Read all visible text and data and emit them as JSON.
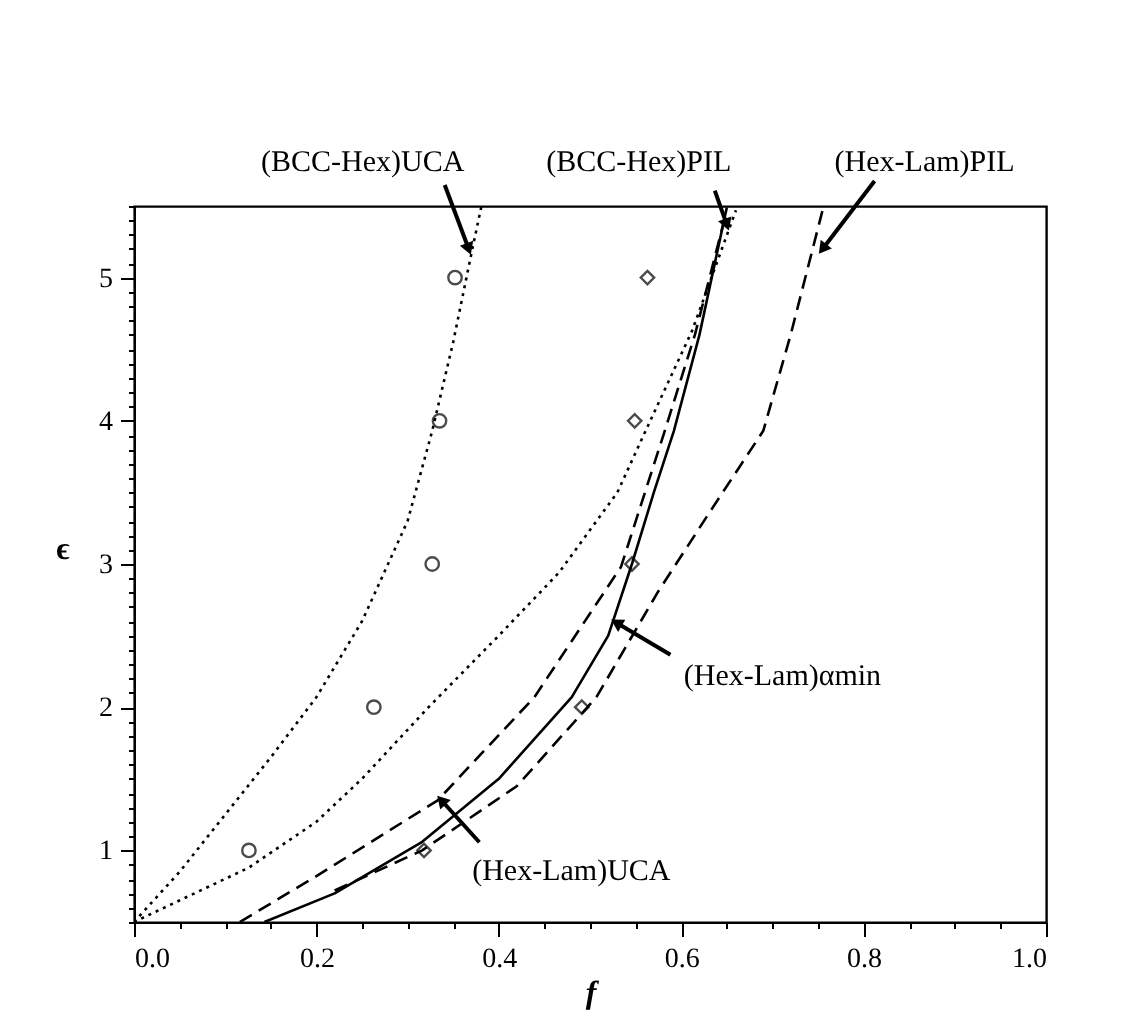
{
  "chart_data": {
    "type": "line",
    "xlabel": "f",
    "ylabel": "ϵ",
    "xlim": [
      0,
      1
    ],
    "ylim": [
      0.5,
      5.5
    ],
    "xticks": [
      {
        "value": 0,
        "label": "0.0"
      },
      {
        "value": 0.05,
        "label": null
      },
      {
        "value": 0.1,
        "label": null
      },
      {
        "value": 0.15,
        "label": null
      },
      0.2,
      {
        "value": 0.25,
        "label": null
      },
      {
        "value": 0.3,
        "label": null
      },
      {
        "value": 0.35,
        "label": null
      },
      0.4,
      {
        "value": 0.45,
        "label": null
      },
      {
        "value": 0.5,
        "label": null
      },
      {
        "value": 0.55,
        "label": null
      },
      0.6,
      {
        "value": 0.65,
        "label": null
      },
      {
        "value": 0.7,
        "label": null
      },
      {
        "value": 0.75,
        "label": null
      },
      0.8,
      {
        "value": 0.85,
        "label": null
      },
      {
        "value": 0.9,
        "label": null
      },
      {
        "value": 0.95,
        "label": null
      },
      {
        "value": 1,
        "label": "1.0"
      }
    ],
    "yticks": [
      {
        "value": 0.5,
        "label": null
      },
      {
        "value": 0.6,
        "label": null
      },
      {
        "value": 0.7,
        "label": null
      },
      {
        "value": 0.8,
        "label": null
      },
      {
        "value": 0.9,
        "label": null
      },
      1,
      {
        "value": 1.1,
        "label": null
      },
      {
        "value": 1.2,
        "label": null
      },
      {
        "value": 1.3,
        "label": null
      },
      {
        "value": 1.4,
        "label": null
      },
      {
        "value": 1.5,
        "label": null
      },
      {
        "value": 1.6,
        "label": null
      },
      {
        "value": 1.7,
        "label": null
      },
      {
        "value": 1.8,
        "label": null
      },
      {
        "value": 1.9,
        "label": null
      },
      2,
      {
        "value": 2.1,
        "label": null
      },
      {
        "value": 2.2,
        "label": null
      },
      {
        "value": 2.3,
        "label": null
      },
      {
        "value": 2.4,
        "label": null
      },
      {
        "value": 2.5,
        "label": null
      },
      {
        "value": 2.6,
        "label": null
      },
      {
        "value": 2.7,
        "label": null
      },
      {
        "value": 2.8,
        "label": null
      },
      {
        "value": 2.9,
        "label": null
      },
      3,
      {
        "value": 3.1,
        "label": null
      },
      {
        "value": 3.2,
        "label": null
      },
      {
        "value": 3.3,
        "label": null
      },
      {
        "value": 3.4,
        "label": null
      },
      {
        "value": 3.5,
        "label": null
      },
      {
        "value": 3.6,
        "label": null
      },
      {
        "value": 3.7,
        "label": null
      },
      {
        "value": 3.8,
        "label": null
      },
      {
        "value": 3.9,
        "label": null
      },
      4,
      {
        "value": 4.1,
        "label": null
      },
      {
        "value": 4.2,
        "label": null
      },
      {
        "value": 4.3,
        "label": null
      },
      {
        "value": 4.4,
        "label": null
      },
      {
        "value": 4.5,
        "label": null
      },
      {
        "value": 4.6,
        "label": null
      },
      {
        "value": 4.7,
        "label": null
      },
      {
        "value": 4.8,
        "label": null
      },
      {
        "value": 4.9,
        "label": null
      },
      5,
      {
        "value": 5.1,
        "label": null
      },
      {
        "value": 5.2,
        "label": null
      },
      {
        "value": 5.3,
        "label": null
      },
      {
        "value": 5.4,
        "label": null
      },
      {
        "value": 5.5,
        "label": null
      }
    ],
    "grid": false,
    "series": [
      {
        "line_style": "dotted",
        "marker": "none",
        "color": "#000000",
        "x": [
          0,
          0.05,
          0.1,
          0.15,
          0.2,
          0.25,
          0.3,
          0.327,
          0.35,
          0.371,
          0.381
        ],
        "values": [
          0.5,
          0.85,
          1.25,
          1.65,
          2.07,
          2.6,
          3.3,
          3.93,
          4.55,
          5.2,
          5.5
        ]
      },
      {
        "line_style": "dotted",
        "marker": "none",
        "color": "#000000",
        "x": [
          0,
          0.126,
          0.2,
          0.25,
          0.323,
          0.4,
          0.466,
          0.53,
          0.561,
          0.612,
          0.66
        ],
        "values": [
          0.5,
          0.88,
          1.2,
          1.5,
          2.0,
          2.5,
          2.94,
          3.5,
          3.93,
          4.63,
          5.47
        ]
      },
      {
        "line_style": "solid",
        "marker": "none",
        "color": "#000000",
        "x": [
          0.143,
          0.22,
          0.316,
          0.4,
          0.48,
          0.52,
          0.546,
          0.57,
          0.592,
          0.62,
          0.65
        ],
        "values": [
          0.5,
          0.7,
          1.06,
          1.5,
          2.07,
          2.5,
          3.0,
          3.5,
          3.93,
          4.6,
          5.49
        ]
      },
      {
        "line_style": "dashed",
        "marker": "none",
        "color": "#000000",
        "x": [
          0.116,
          0.2,
          0.333,
          0.439,
          0.534,
          0.582,
          0.615,
          0.65
        ],
        "values": [
          0.5,
          0.82,
          1.35,
          2.07,
          2.98,
          3.93,
          4.6,
          5.47
        ]
      },
      {
        "line_style": "dashed",
        "marker": "none",
        "color": "#000000",
        "x": [
          0.22,
          0.316,
          0.42,
          0.507,
          0.575,
          0.63,
          0.69,
          0.72,
          0.755
        ],
        "values": [
          0.72,
          1.0,
          1.45,
          2.07,
          2.81,
          3.35,
          3.93,
          4.6,
          5.47
        ]
      },
      {
        "type": "scatter",
        "marker": "circle",
        "color": "#000000",
        "x": [
          0.126,
          0.263,
          0.327,
          0.335,
          0.352
        ],
        "values": [
          1,
          2,
          3,
          4,
          5
        ]
      },
      {
        "type": "scatter",
        "marker": "diamond",
        "color": "#000000",
        "x": [
          0.318,
          0.491,
          0.546,
          0.549,
          0.563
        ],
        "values": [
          1,
          2,
          3,
          4,
          5
        ]
      }
    ],
    "annotations": [
      {
        "text": "(BCC-Hex)UCA",
        "x": 0.367,
        "y": 5.2
      },
      {
        "text": "(BCC-Hex)PIL",
        "x": 0.65,
        "y": 5.37
      },
      {
        "text": "(Hex-Lam)PIL",
        "x": 0.755,
        "y": 5.2
      },
      {
        "text": "(Hex-Lam)αmin",
        "x": 0.529,
        "y": 2.59
      },
      {
        "text": "(Hex-Lam)UCA",
        "x": 0.337,
        "y": 1.35
      }
    ]
  }
}
